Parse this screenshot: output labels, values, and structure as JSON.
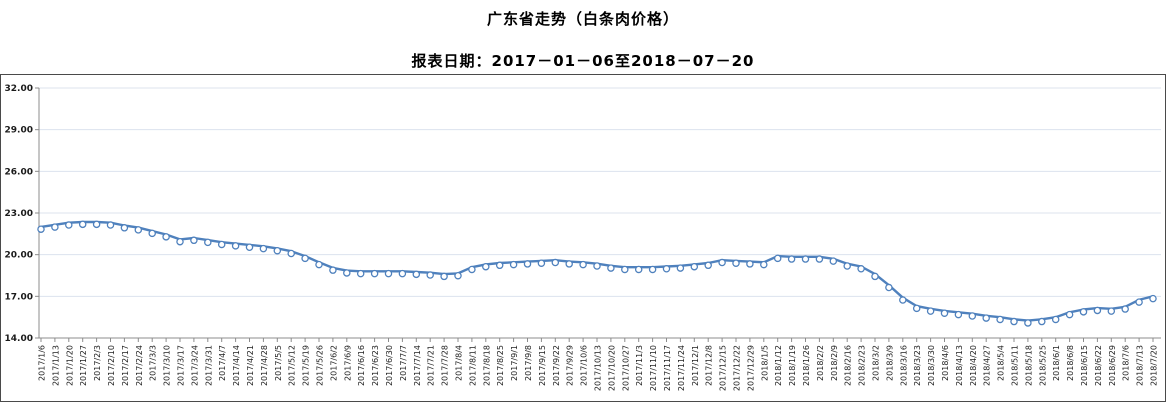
{
  "header": {
    "title": "广东省走势（白条肉价格）",
    "subtitle": "报表日期：2017－01－06至2018－07－20"
  },
  "colors": {
    "line": "#4f81bd",
    "marker_fill": "#ffffff",
    "gridline": "#dce3ee",
    "axis": "#8c8c8c",
    "frame_border": "#4a4a4a"
  },
  "chart_data": {
    "type": "line",
    "title": "广东省走势（白条肉价格）",
    "subtitle": "报表日期：2017－01－06至2018－07－20",
    "ylabel": "",
    "xlabel": "",
    "ylim": [
      14,
      32
    ],
    "yticks": [
      14,
      17,
      20,
      23,
      26,
      29,
      32
    ],
    "grid": true,
    "legend_position": "none",
    "x": [
      "2017/1/6",
      "2017/1/13",
      "2017/1/20",
      "2017/1/27",
      "2017/2/3",
      "2017/2/10",
      "2017/2/17",
      "2017/2/24",
      "2017/3/3",
      "2017/3/10",
      "2017/3/17",
      "2017/3/24",
      "2017/3/31",
      "2017/4/7",
      "2017/4/14",
      "2017/4/21",
      "2017/4/28",
      "2017/5/5",
      "2017/5/12",
      "2017/5/19",
      "2017/5/26",
      "2017/6/2",
      "2017/6/9",
      "2017/6/16",
      "2017/6/23",
      "2017/6/30",
      "2017/7/7",
      "2017/7/14",
      "2017/7/21",
      "2017/7/28",
      "2017/8/4",
      "2017/8/11",
      "2017/8/18",
      "2017/8/25",
      "2017/9/1",
      "2017/9/8",
      "2017/9/15",
      "2017/9/22",
      "2017/9/29",
      "2017/10/6",
      "2017/10/13",
      "2017/10/20",
      "2017/10/27",
      "2017/11/3",
      "2017/11/10",
      "2017/11/17",
      "2017/11/24",
      "2017/12/1",
      "2017/12/8",
      "2017/12/15",
      "2017/12/22",
      "2017/12/29",
      "2018/1/5",
      "2018/1/12",
      "2018/1/19",
      "2018/1/26",
      "2018/2/2",
      "2018/2/9",
      "2018/2/16",
      "2018/2/23",
      "2018/3/2",
      "2018/3/9",
      "2018/3/16",
      "2018/3/23",
      "2018/3/30",
      "2018/4/6",
      "2018/4/13",
      "2018/4/20",
      "2018/4/27",
      "2018/5/4",
      "2018/5/11",
      "2018/5/18",
      "2018/5/25",
      "2018/6/1",
      "2018/6/8",
      "2018/6/15",
      "2018/6/22",
      "2018/6/29",
      "2018/7/6",
      "2018/7/13",
      "2018/7/20"
    ],
    "series": [
      {
        "name": "白条肉价格",
        "values": [
          22.0,
          22.15,
          22.3,
          22.35,
          22.35,
          22.3,
          22.1,
          21.95,
          21.7,
          21.45,
          21.1,
          21.2,
          21.05,
          20.9,
          20.8,
          20.7,
          20.6,
          20.45,
          20.25,
          19.9,
          19.45,
          19.05,
          18.85,
          18.8,
          18.8,
          18.8,
          18.8,
          18.75,
          18.7,
          18.6,
          18.65,
          19.1,
          19.3,
          19.4,
          19.45,
          19.5,
          19.55,
          19.6,
          19.5,
          19.45,
          19.35,
          19.2,
          19.1,
          19.1,
          19.1,
          19.15,
          19.2,
          19.3,
          19.4,
          19.6,
          19.55,
          19.5,
          19.45,
          19.9,
          19.85,
          19.85,
          19.85,
          19.7,
          19.35,
          19.15,
          18.6,
          17.8,
          16.9,
          16.3,
          16.1,
          15.95,
          15.85,
          15.75,
          15.6,
          15.5,
          15.35,
          15.25,
          15.35,
          15.5,
          15.85,
          16.05,
          16.15,
          16.1,
          16.25,
          16.75,
          17.0
        ]
      }
    ]
  }
}
